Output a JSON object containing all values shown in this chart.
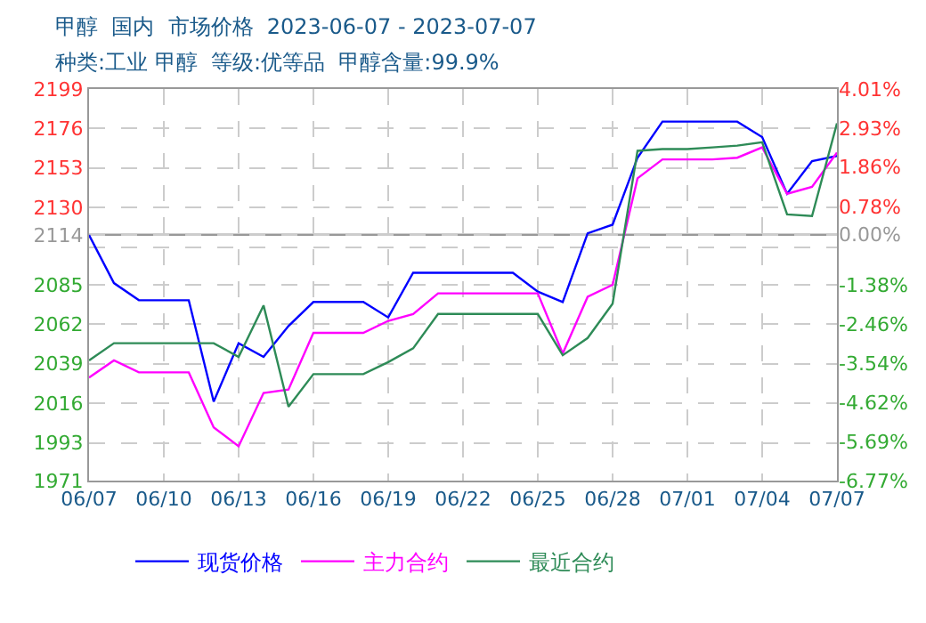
{
  "chart_data": {
    "type": "line",
    "title": "甲醇  国内  市场价格  2023-06-07 - 2023-07-07",
    "subtitle": "种类:工业 甲醇  等级:优等品  甲醇含量:99.9%",
    "x": [
      "2023-06-07",
      "2023-06-08",
      "2023-06-09",
      "2023-06-10",
      "2023-06-11",
      "2023-06-12",
      "2023-06-13",
      "2023-06-14",
      "2023-06-15",
      "2023-06-16",
      "2023-06-17",
      "2023-06-18",
      "2023-06-19",
      "2023-06-20",
      "2023-06-21",
      "2023-06-22",
      "2023-06-23",
      "2023-06-24",
      "2023-06-25",
      "2023-06-26",
      "2023-06-27",
      "2023-06-28",
      "2023-06-29",
      "2023-06-30",
      "2023-07-01",
      "2023-07-02",
      "2023-07-03",
      "2023-07-04",
      "2023-07-05",
      "2023-07-06",
      "2023-07-07"
    ],
    "series": [
      {
        "name": "现货价格",
        "color": "#0000ff",
        "values": [
          2114,
          2086,
          2076,
          2076,
          2076,
          2017,
          2051,
          2043,
          2061,
          2075,
          2075,
          2075,
          2066,
          2092,
          2092,
          2092,
          2092,
          2092,
          2081,
          2075,
          2115,
          2120,
          2159,
          2180,
          2180,
          2180,
          2180,
          2171,
          2138,
          2157,
          2160
        ]
      },
      {
        "name": "主力合约",
        "color": "#ff00ff",
        "values": [
          2031,
          2041,
          2034,
          2034,
          2034,
          2002,
          1991,
          2022,
          2024,
          2057,
          2057,
          2057,
          2064,
          2068,
          2080,
          2080,
          2080,
          2080,
          2080,
          2045,
          2078,
          2085,
          2147,
          2158,
          2158,
          2158,
          2159,
          2165,
          2138,
          2142,
          2162
        ]
      },
      {
        "name": "最近合约",
        "color": "#2e8b57",
        "values": [
          2041,
          2051,
          2051,
          2051,
          2051,
          2051,
          2043,
          2073,
          2014,
          2033,
          2033,
          2033,
          2040,
          2048,
          2068,
          2068,
          2068,
          2068,
          2068,
          2044,
          2054,
          2074,
          2163,
          2164,
          2164,
          2165,
          2166,
          2168,
          2126,
          2125,
          2179
        ]
      }
    ],
    "xlim": [
      "2023-06-07",
      "2023-07-07"
    ],
    "xticks": [
      {
        "value": "2023-06-07",
        "label": "06/07"
      },
      {
        "value": "2023-06-10",
        "label": "06/10"
      },
      {
        "value": "2023-06-13",
        "label": "06/13"
      },
      {
        "value": "2023-06-16",
        "label": "06/16"
      },
      {
        "value": "2023-06-19",
        "label": "06/19"
      },
      {
        "value": "2023-06-22",
        "label": "06/22"
      },
      {
        "value": "2023-06-25",
        "label": "06/25"
      },
      {
        "value": "2023-06-28",
        "label": "06/28"
      },
      {
        "value": "2023-07-01",
        "label": "07/01"
      },
      {
        "value": "2023-07-04",
        "label": "07/04"
      },
      {
        "value": "2023-07-07",
        "label": "07/07"
      }
    ],
    "ylim": [
      1971,
      2199
    ],
    "yticks": [
      1971,
      1993,
      2016,
      2039,
      2062,
      2085,
      {
        "value": 2107,
        "label": null
      },
      2114,
      2130,
      2153,
      2176,
      2199
    ],
    "y2lim": [
      -6.77,
      4.01
    ],
    "y2ticks": [
      {
        "value": -6.77,
        "label": "-6.77%"
      },
      {
        "value": -5.69,
        "label": "-5.69%"
      },
      {
        "value": -4.62,
        "label": "-4.62%"
      },
      {
        "value": -3.54,
        "label": "-3.54%"
      },
      {
        "value": -2.46,
        "label": "-2.46%"
      },
      {
        "value": -1.38,
        "label": "-1.38%"
      },
      {
        "value": 0,
        "label": "0.00%"
      },
      {
        "value": 0.78,
        "label": "0.78%"
      },
      {
        "value": 1.86,
        "label": "1.86%"
      },
      {
        "value": 2.93,
        "label": "2.93%"
      },
      {
        "value": 4.01,
        "label": "4.01%"
      }
    ],
    "ref_lines": [
      {
        "axis": "y2",
        "value": 0,
        "color": "#999999"
      }
    ],
    "grid": true,
    "legend": "bottom",
    "marker": "none",
    "line_style": "solid"
  }
}
